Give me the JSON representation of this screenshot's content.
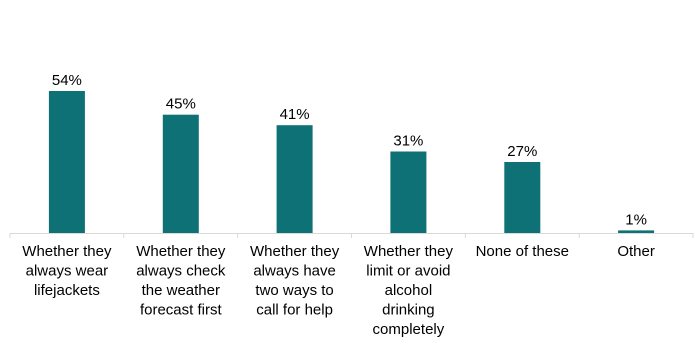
{
  "chart_data": {
    "type": "bar",
    "title": "",
    "xlabel": "",
    "ylabel": "",
    "categories": [
      "Whether they always wear lifejackets",
      "Whether they always check the weather forecast first",
      "Whether they always have two ways to call for help",
      "Whether they limit or avoid alcohol drinking completely",
      "None of these",
      "Other"
    ],
    "category_lines": [
      [
        "Whether they",
        "always wear",
        "lifejackets"
      ],
      [
        "Whether they",
        "always check",
        "the weather",
        "forecast first"
      ],
      [
        "Whether they",
        "always have",
        "two ways to",
        "call for help"
      ],
      [
        "Whether they",
        "limit or avoid",
        "alcohol",
        "drinking",
        "completely"
      ],
      [
        "None of these"
      ],
      [
        "Other"
      ]
    ],
    "values": [
      54,
      45,
      41,
      31,
      27,
      1
    ],
    "value_labels": [
      "54%",
      "45%",
      "41%",
      "31%",
      "27%",
      "1%"
    ],
    "ylim": [
      0,
      60
    ],
    "grid": false,
    "legend": "none",
    "bar_color": "#0E7176",
    "axis_color": "#D9D9D9",
    "text_color": "#000000"
  }
}
